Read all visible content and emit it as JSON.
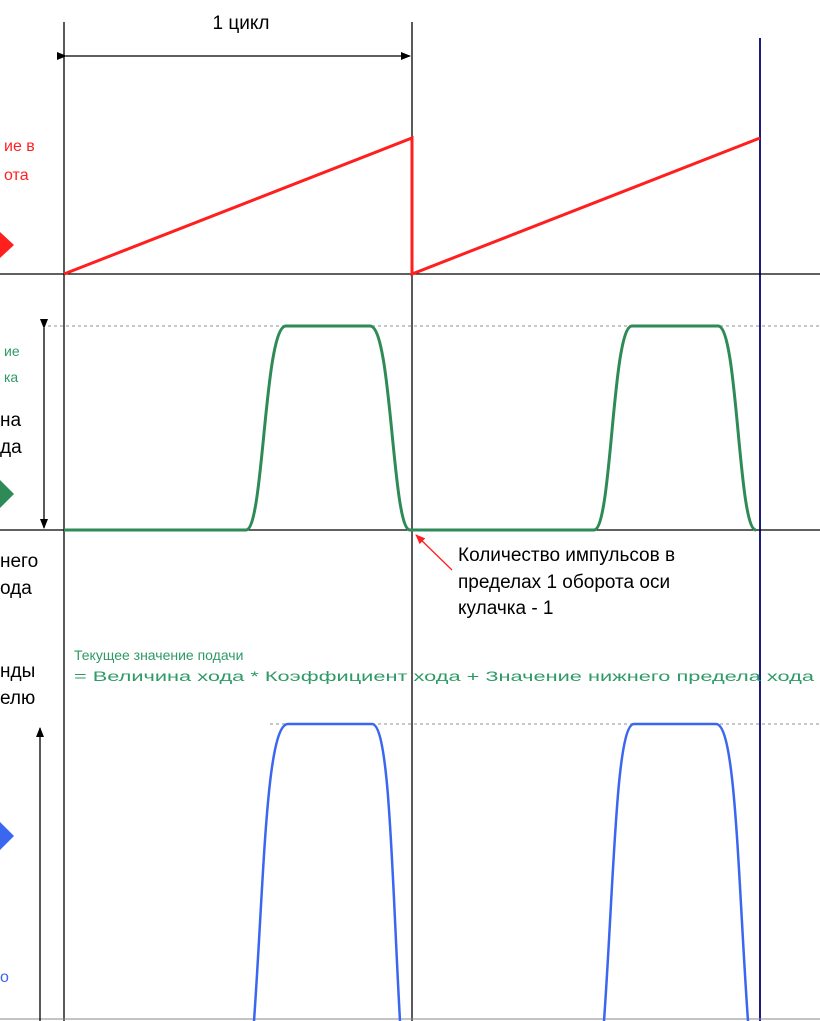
{
  "cycle_label": "1 цикл",
  "red_label": {
    "line1": "ие в",
    "line2": "ота"
  },
  "green_label": {
    "line1": "ие",
    "line2": "ка"
  },
  "stroke_label": {
    "line1": "на",
    "line2": "да"
  },
  "lower_limit_label": {
    "line1": "него",
    "line2": "ода"
  },
  "pulses_note": {
    "line1": "Количество импульсов в",
    "line2": "пределах 1 оборота оси",
    "line3": "кулачка - 1"
  },
  "feed_formula": {
    "line1": "Текущее значение подачи",
    "line2": "= Величина хода * Коэффициент хода + Значение нижнего предела хода"
  },
  "command_label": {
    "line1": "нды",
    "line2": "елю"
  },
  "blue_label": "о",
  "colors": {
    "red": "#ff1f1f",
    "green": "#2e8b57",
    "green_text": "#2e9a66",
    "blue": "#3b66f0",
    "navy": "#1c1c80",
    "dotted": "#b5b5b5",
    "black": "#000000"
  }
}
